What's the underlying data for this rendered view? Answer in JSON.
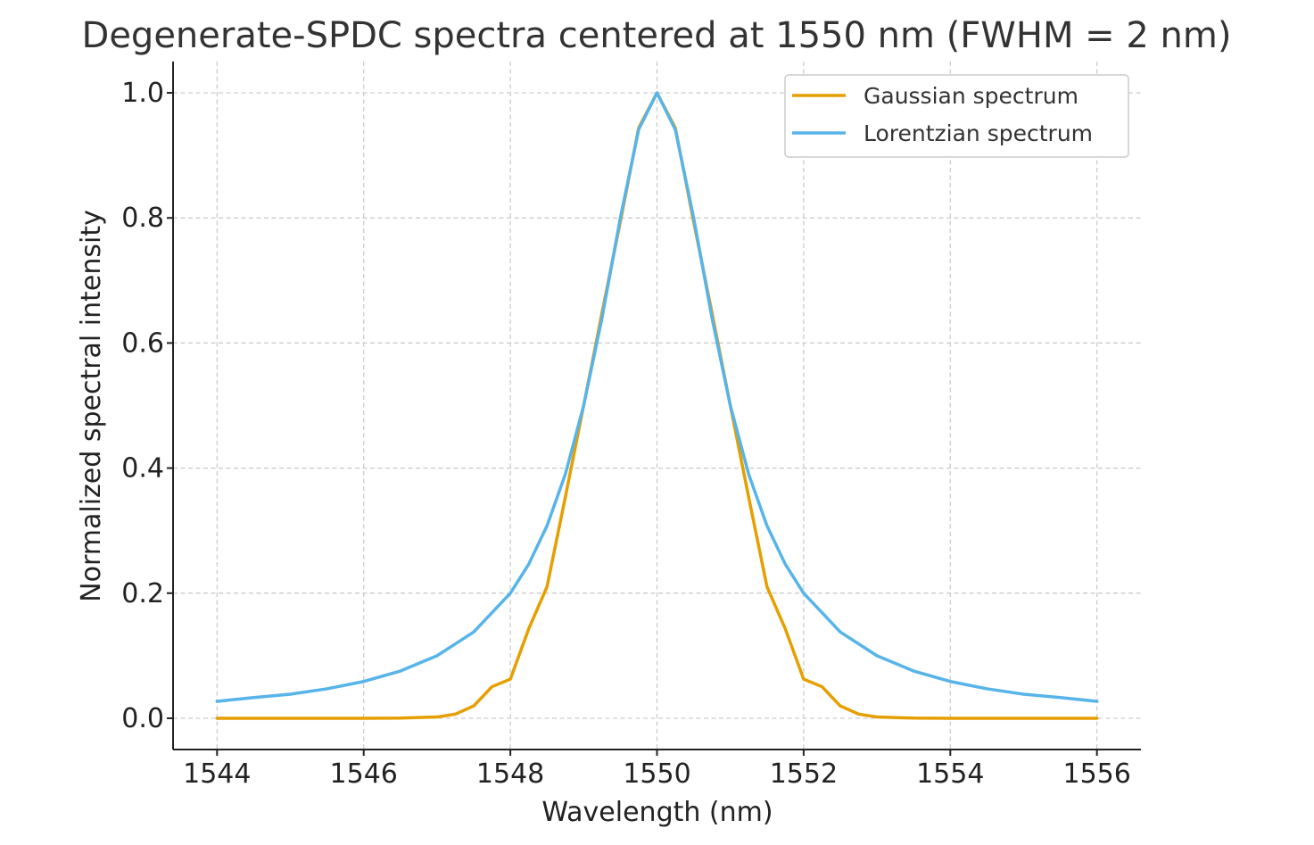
{
  "chart_data": {
    "type": "line",
    "title": "Degenerate-SPDC spectra centered at 1550 nm (FWHM = 2 nm)",
    "xlabel": "Wavelength (nm)",
    "ylabel": "Normalized spectral intensity",
    "xlim": [
      1543.4,
      1556.6
    ],
    "ylim": [
      -0.05,
      1.05
    ],
    "xticks": [
      1544,
      1546,
      1548,
      1550,
      1552,
      1554,
      1556
    ],
    "xtick_labels": [
      "1544",
      "1546",
      "1548",
      "1550",
      "1552",
      "1554",
      "1556"
    ],
    "yticks": [
      0.0,
      0.2,
      0.4,
      0.6,
      0.8,
      1.0
    ],
    "ytick_labels": [
      "0.0",
      "0.2",
      "0.4",
      "0.6",
      "0.8",
      "1.0"
    ],
    "grid": true,
    "legend_position": "upper right",
    "series": [
      {
        "name": "Gaussian spectrum",
        "color": "#E69F00",
        "x": [
          1544.0,
          1544.5,
          1545.0,
          1545.5,
          1546.0,
          1546.5,
          1547.0,
          1547.25,
          1547.5,
          1547.75,
          1548.0,
          1548.25,
          1548.5,
          1548.75,
          1549.0,
          1549.25,
          1549.5,
          1549.75,
          1550.0,
          1550.25,
          1550.5,
          1550.75,
          1551.0,
          1551.25,
          1551.5,
          1551.75,
          1552.0,
          1552.25,
          1552.5,
          1552.75,
          1553.0,
          1553.5,
          1554.0,
          1554.5,
          1555.0,
          1555.5,
          1556.0
        ],
        "y": [
          0.0,
          0.0,
          0.0,
          0.0,
          0.0,
          0.0002,
          0.002,
          0.0066,
          0.0197,
          0.0505,
          0.0625,
          0.1428,
          0.2102,
          0.3536,
          0.5,
          0.6484,
          0.7937,
          0.9439,
          1.0,
          0.9439,
          0.7937,
          0.6484,
          0.5,
          0.3536,
          0.2102,
          0.1428,
          0.0625,
          0.0505,
          0.0197,
          0.0066,
          0.002,
          0.0002,
          0.0,
          0.0,
          0.0,
          0.0,
          0.0
        ]
      },
      {
        "name": "Lorentzian spectrum",
        "color": "#56B4E9",
        "x": [
          1544.0,
          1544.5,
          1545.0,
          1545.5,
          1546.0,
          1546.5,
          1547.0,
          1547.5,
          1548.0,
          1548.25,
          1548.5,
          1548.75,
          1549.0,
          1549.25,
          1549.5,
          1549.75,
          1550.0,
          1550.25,
          1550.5,
          1550.75,
          1551.0,
          1551.25,
          1551.5,
          1551.75,
          1552.0,
          1552.5,
          1553.0,
          1553.5,
          1554.0,
          1554.5,
          1555.0,
          1555.5,
          1556.0
        ],
        "y": [
          0.027,
          0.0331,
          0.0385,
          0.0471,
          0.0588,
          0.0755,
          0.1,
          0.1379,
          0.2,
          0.2462,
          0.3077,
          0.3902,
          0.5,
          0.64,
          0.8,
          0.9412,
          1.0,
          0.9412,
          0.8,
          0.64,
          0.5,
          0.3902,
          0.3077,
          0.2462,
          0.2,
          0.1379,
          0.1,
          0.0755,
          0.0588,
          0.0471,
          0.0385,
          0.0331,
          0.027
        ]
      }
    ]
  }
}
